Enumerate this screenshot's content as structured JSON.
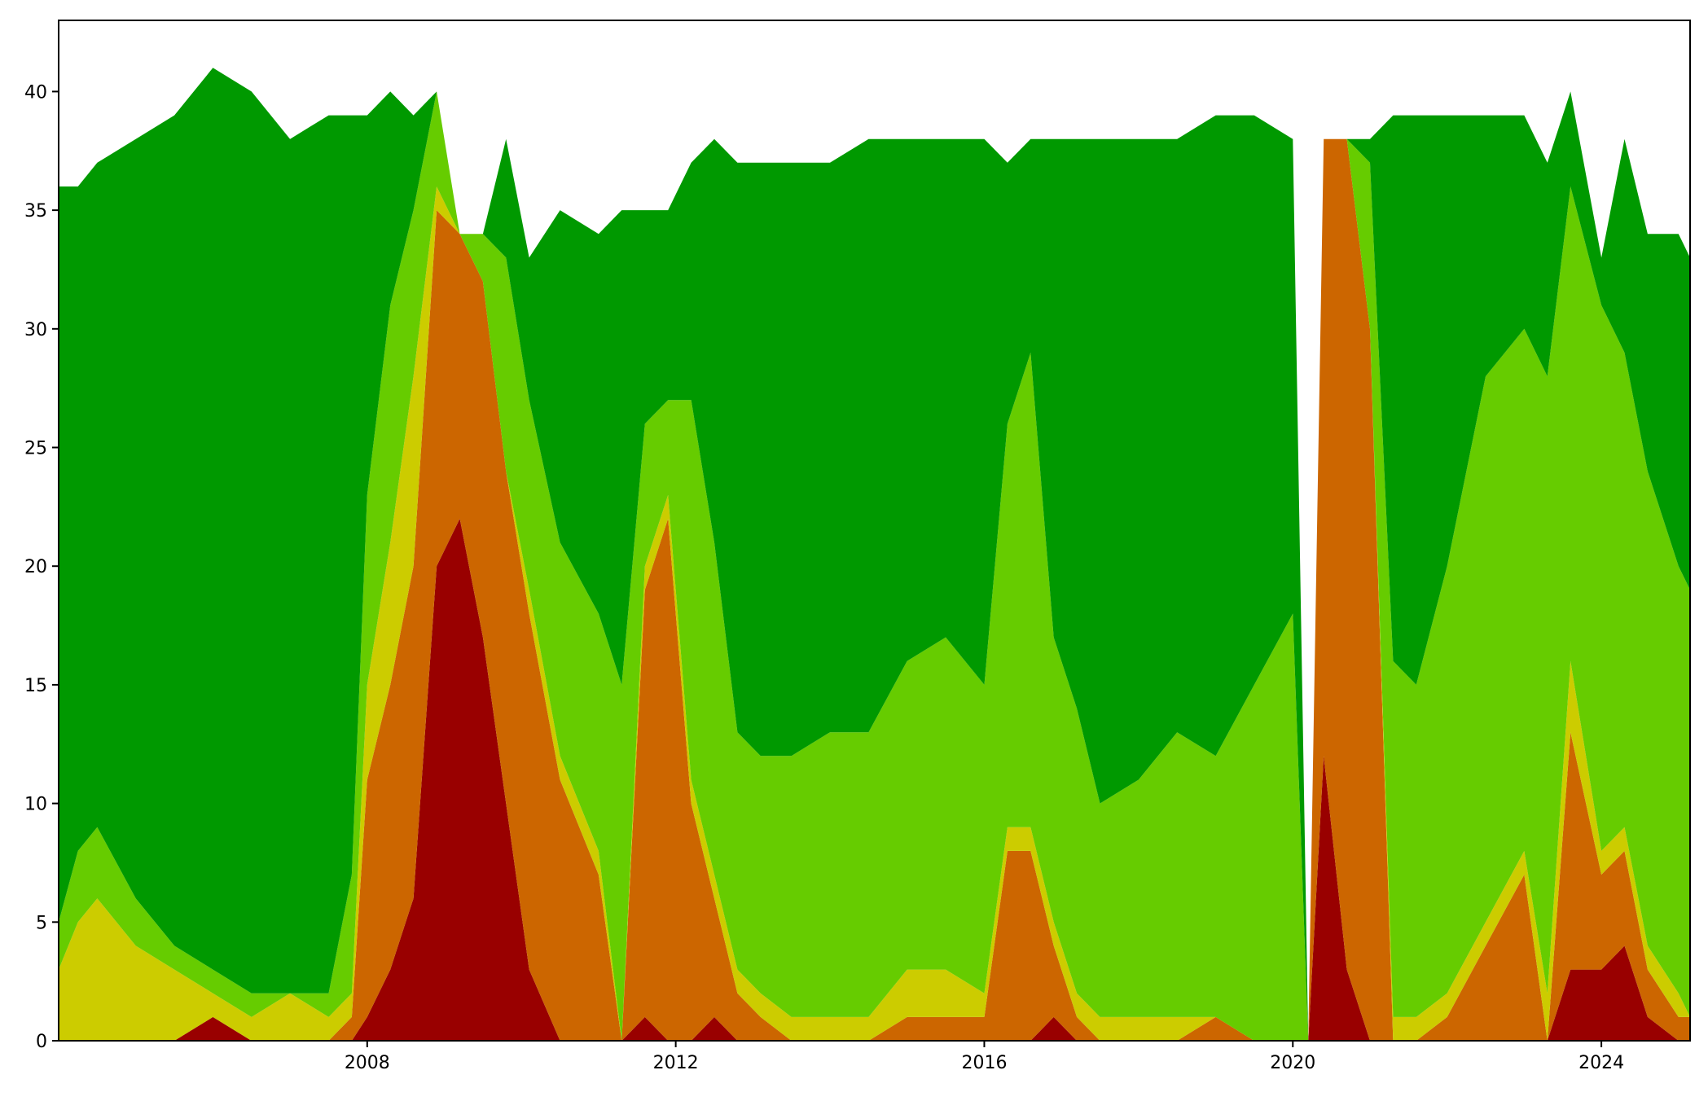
{
  "chart_data": {
    "type": "area",
    "stacked": true,
    "title": "",
    "xlabel": "",
    "ylabel": "",
    "xlim": [
      2004.0,
      2025.15
    ],
    "ylim": [
      0,
      43
    ],
    "x_ticks": [
      2008,
      2012,
      2016,
      2020,
      2024
    ],
    "x_tick_labels": [
      "2008",
      "2012",
      "2016",
      "2020",
      "2024"
    ],
    "y_ticks": [
      0,
      5,
      10,
      15,
      20,
      25,
      30,
      35,
      40
    ],
    "y_tick_labels": [
      "0",
      "5",
      "10",
      "15",
      "20",
      "25",
      "30",
      "35",
      "40"
    ],
    "grid": false,
    "legend": "none",
    "x": [
      2004.0,
      2004.25,
      2004.5,
      2005.0,
      2005.5,
      2006.0,
      2006.5,
      2007.0,
      2007.5,
      2007.8,
      2008.0,
      2008.3,
      2008.6,
      2008.9,
      2009.2,
      2009.5,
      2009.8,
      2010.1,
      2010.5,
      2011.0,
      2011.3,
      2011.6,
      2011.9,
      2012.2,
      2012.5,
      2012.8,
      2013.1,
      2013.5,
      2014.0,
      2014.5,
      2015.0,
      2015.5,
      2016.0,
      2016.3,
      2016.6,
      2016.9,
      2017.2,
      2017.5,
      2018.0,
      2018.5,
      2019.0,
      2019.5,
      2020.0,
      2020.2,
      2020.4,
      2020.7,
      2021.0,
      2021.3,
      2021.6,
      2022.0,
      2022.5,
      2023.0,
      2023.3,
      2023.6,
      2024.0,
      2024.3,
      2024.6,
      2025.0,
      2025.15
    ],
    "series": [
      {
        "color": "#990000",
        "values": [
          0,
          0,
          0,
          0,
          0,
          1,
          0,
          0,
          0,
          0,
          1,
          3,
          6,
          20,
          22,
          17,
          10,
          3,
          0,
          0,
          0,
          1,
          0,
          0,
          1,
          0,
          0,
          0,
          0,
          0,
          0,
          0,
          0,
          0,
          0,
          1,
          0,
          0,
          0,
          0,
          0,
          0,
          0,
          0,
          12,
          3,
          0,
          0,
          0,
          0,
          0,
          0,
          0,
          3,
          3,
          4,
          1,
          0,
          0
        ]
      },
      {
        "color": "#cc6600",
        "values": [
          0,
          0,
          0,
          0,
          0,
          0,
          0,
          0,
          0,
          1,
          10,
          12,
          14,
          15,
          12,
          15,
          14,
          15,
          11,
          7,
          0,
          18,
          22,
          10,
          5,
          2,
          1,
          0,
          0,
          0,
          1,
          1,
          1,
          8,
          8,
          3,
          1,
          0,
          0,
          0,
          1,
          0,
          0,
          0,
          26,
          35,
          30,
          0,
          0,
          1,
          4,
          7,
          0,
          10,
          4,
          4,
          2,
          1,
          1
        ]
      },
      {
        "color": "#cccc00",
        "values": [
          3,
          5,
          6,
          4,
          3,
          1,
          1,
          2,
          1,
          1,
          4,
          6,
          8,
          1,
          0,
          0,
          0,
          1,
          1,
          1,
          0,
          1,
          1,
          1,
          1,
          1,
          1,
          1,
          1,
          1,
          2,
          2,
          1,
          1,
          1,
          1,
          1,
          1,
          1,
          1,
          0,
          0,
          0,
          0,
          0,
          0,
          0,
          1,
          1,
          1,
          1,
          1,
          2,
          3,
          1,
          1,
          1,
          1,
          0
        ]
      },
      {
        "color": "#66cc00",
        "values": [
          2,
          3,
          3,
          2,
          1,
          1,
          1,
          0,
          1,
          5,
          8,
          10,
          7,
          4,
          0,
          2,
          9,
          8,
          9,
          10,
          15,
          6,
          4,
          16,
          14,
          10,
          10,
          11,
          12,
          12,
          13,
          14,
          13,
          17,
          20,
          12,
          12,
          9,
          10,
          12,
          11,
          15,
          18,
          0,
          0,
          0,
          7,
          15,
          14,
          18,
          23,
          22,
          26,
          20,
          23,
          20,
          20,
          18,
          18
        ]
      },
      {
        "color": "#009900",
        "values": [
          31,
          28,
          28,
          32,
          35,
          38,
          38,
          36,
          37,
          32,
          16,
          9,
          4,
          0,
          0,
          0,
          5,
          6,
          14,
          16,
          20,
          9,
          8,
          10,
          17,
          24,
          25,
          25,
          24,
          25,
          22,
          21,
          23,
          11,
          9,
          21,
          24,
          28,
          27,
          25,
          27,
          24,
          20,
          0,
          0,
          0,
          1,
          23,
          24,
          19,
          11,
          9,
          9,
          4,
          2,
          9,
          10,
          14,
          14
        ]
      }
    ]
  }
}
